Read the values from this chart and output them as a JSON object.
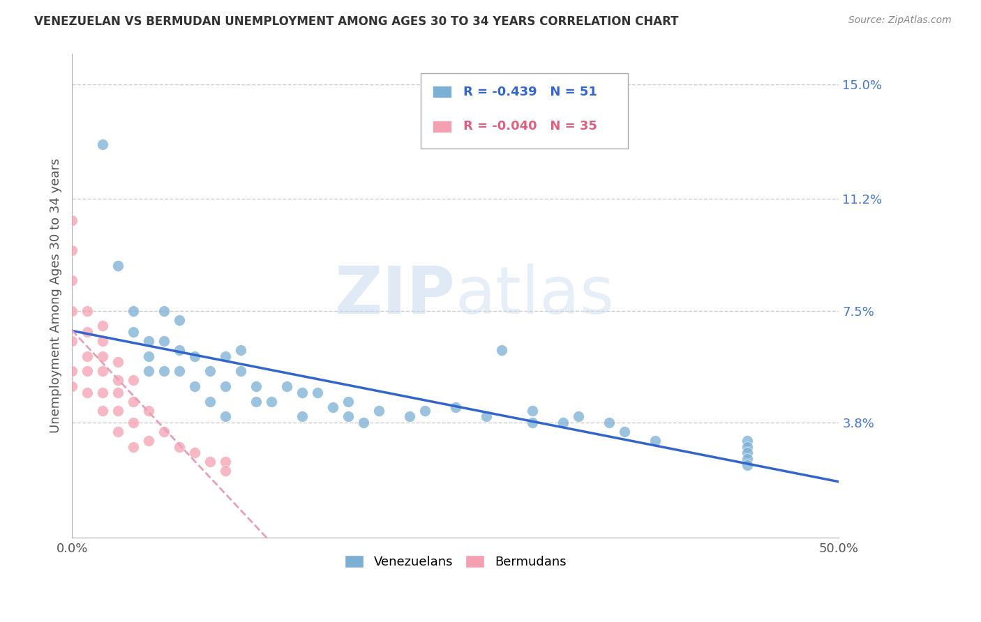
{
  "title": "VENEZUELAN VS BERMUDAN UNEMPLOYMENT AMONG AGES 30 TO 34 YEARS CORRELATION CHART",
  "source": "Source: ZipAtlas.com",
  "ylabel": "Unemployment Among Ages 30 to 34 years",
  "xlim": [
    0.0,
    0.5
  ],
  "ylim": [
    0.0,
    0.16
  ],
  "ytick_right_values": [
    0.038,
    0.075,
    0.112,
    0.15
  ],
  "ytick_right_labels": [
    "3.8%",
    "7.5%",
    "11.2%",
    "15.0%"
  ],
  "r_venezuelan": -0.439,
  "n_venezuelan": 51,
  "r_bermudan": -0.04,
  "n_bermudan": 35,
  "color_venezuelan": "#7bafd4",
  "color_bermudan": "#f4a0b0",
  "color_line_venezuelan": "#3366cc",
  "color_line_bermudan": "#e8a0b8",
  "watermark_zip": "ZIP",
  "watermark_atlas": "atlas",
  "legend_label_venezuelan": "Venezuelans",
  "legend_label_bermudan": "Bermudans",
  "venezuelan_x": [
    0.02,
    0.03,
    0.04,
    0.04,
    0.05,
    0.05,
    0.05,
    0.06,
    0.06,
    0.06,
    0.07,
    0.07,
    0.07,
    0.08,
    0.08,
    0.09,
    0.09,
    0.1,
    0.1,
    0.1,
    0.11,
    0.11,
    0.12,
    0.12,
    0.13,
    0.14,
    0.15,
    0.15,
    0.16,
    0.17,
    0.18,
    0.18,
    0.19,
    0.2,
    0.22,
    0.23,
    0.25,
    0.27,
    0.28,
    0.3,
    0.3,
    0.32,
    0.33,
    0.35,
    0.36,
    0.38,
    0.44,
    0.44,
    0.44,
    0.44,
    0.44
  ],
  "venezuelan_y": [
    0.13,
    0.09,
    0.075,
    0.068,
    0.065,
    0.06,
    0.055,
    0.075,
    0.065,
    0.055,
    0.072,
    0.062,
    0.055,
    0.06,
    0.05,
    0.055,
    0.045,
    0.06,
    0.05,
    0.04,
    0.062,
    0.055,
    0.05,
    0.045,
    0.045,
    0.05,
    0.048,
    0.04,
    0.048,
    0.043,
    0.045,
    0.04,
    0.038,
    0.042,
    0.04,
    0.042,
    0.043,
    0.04,
    0.062,
    0.042,
    0.038,
    0.038,
    0.04,
    0.038,
    0.035,
    0.032,
    0.032,
    0.03,
    0.028,
    0.026,
    0.024
  ],
  "bermudan_x": [
    0.0,
    0.0,
    0.0,
    0.0,
    0.0,
    0.0,
    0.0,
    0.01,
    0.01,
    0.01,
    0.01,
    0.01,
    0.02,
    0.02,
    0.02,
    0.02,
    0.02,
    0.02,
    0.03,
    0.03,
    0.03,
    0.03,
    0.03,
    0.04,
    0.04,
    0.04,
    0.04,
    0.05,
    0.05,
    0.06,
    0.07,
    0.08,
    0.09,
    0.1,
    0.1
  ],
  "bermudan_y": [
    0.105,
    0.095,
    0.085,
    0.075,
    0.065,
    0.055,
    0.05,
    0.075,
    0.068,
    0.06,
    0.055,
    0.048,
    0.07,
    0.065,
    0.06,
    0.055,
    0.048,
    0.042,
    0.058,
    0.052,
    0.048,
    0.042,
    0.035,
    0.052,
    0.045,
    0.038,
    0.03,
    0.042,
    0.032,
    0.035,
    0.03,
    0.028,
    0.025,
    0.025,
    0.022
  ],
  "bg_color": "#ffffff",
  "grid_color": "#cccccc",
  "title_color": "#333333",
  "right_label_color": "#4477cc"
}
